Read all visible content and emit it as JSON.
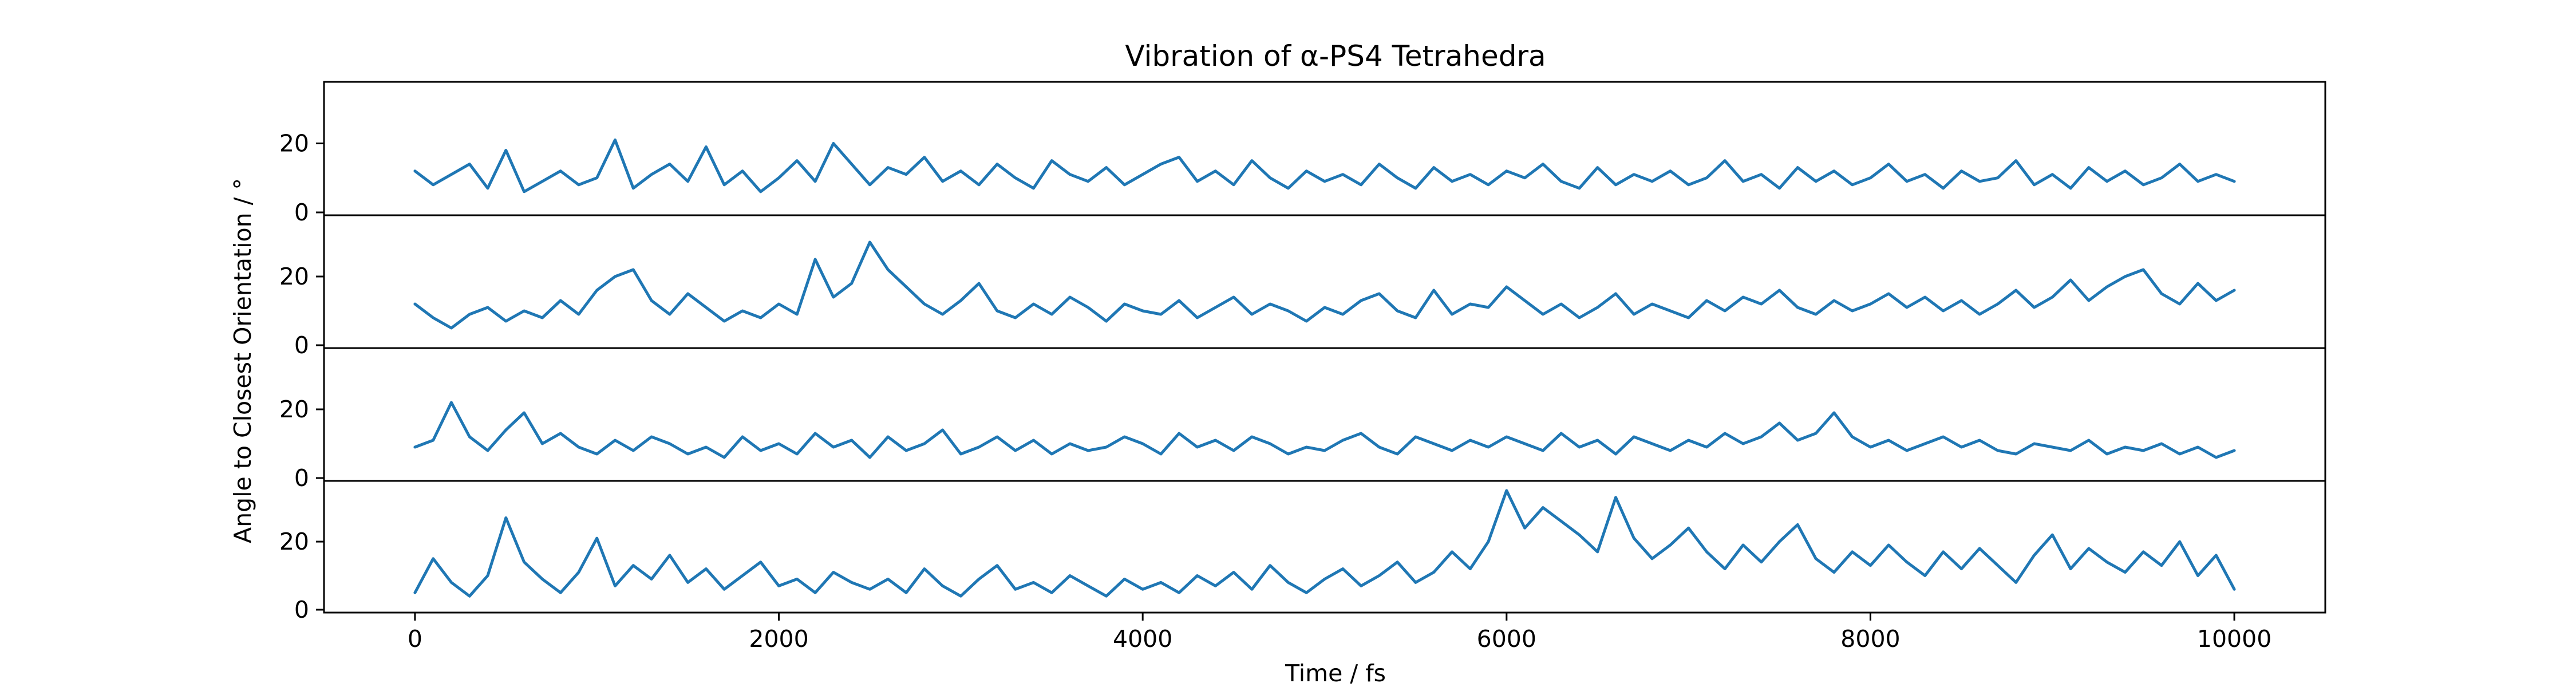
{
  "chart_data": {
    "type": "line",
    "title": "Vibration of α-PS4 Tetrahedra",
    "xlabel": "Time / fs",
    "ylabel": "Angle to Closest Orientation / °",
    "xlim": [
      -500,
      10500
    ],
    "ylim": [
      0,
      37
    ],
    "x_ticks": [
      0,
      2000,
      4000,
      6000,
      8000,
      10000
    ],
    "x_tick_labels": [
      "0",
      "2000",
      "4000",
      "6000",
      "8000",
      "10000"
    ],
    "y_ticks": [
      0,
      20
    ],
    "y_tick_labels": [
      "0",
      "20"
    ],
    "grid": false,
    "legend": "none",
    "line_color": "#1f77b4",
    "series": [
      {
        "x": [
          0,
          100,
          200,
          300,
          400,
          500,
          600,
          700,
          800,
          900,
          1000,
          1100,
          1200,
          1300,
          1400,
          1500,
          1600,
          1700,
          1800,
          1900,
          2000,
          2100,
          2200,
          2300,
          2400,
          2500,
          2600,
          2700,
          2800,
          2900,
          3000,
          3100,
          3200,
          3300,
          3400,
          3500,
          3600,
          3700,
          3800,
          3900,
          4000,
          4100,
          4200,
          4300,
          4400,
          4500,
          4600,
          4700,
          4800,
          4900,
          5000,
          5100,
          5200,
          5300,
          5400,
          5500,
          5600,
          5700,
          5800,
          5900,
          6000,
          6100,
          6200,
          6300,
          6400,
          6500,
          6600,
          6700,
          6800,
          6900,
          7000,
          7100,
          7200,
          7300,
          7400,
          7500,
          7600,
          7700,
          7800,
          7900,
          8000,
          8100,
          8200,
          8300,
          8400,
          8500,
          8600,
          8700,
          8800,
          8900,
          9000,
          9100,
          9200,
          9300,
          9400,
          9500,
          9600,
          9700,
          9800,
          9900,
          10000
        ],
        "values": [
          12,
          8,
          11,
          14,
          7,
          18,
          6,
          9,
          12,
          8,
          10,
          21,
          7,
          11,
          14,
          9,
          19,
          8,
          12,
          6,
          10,
          15,
          9,
          20,
          14,
          8,
          13,
          11,
          16,
          9,
          12,
          8,
          14,
          10,
          7,
          15,
          11,
          9,
          13,
          8,
          11,
          14,
          16,
          9,
          12,
          8,
          15,
          10,
          7,
          12,
          9,
          11,
          8,
          14,
          10,
          7,
          13,
          9,
          11,
          8,
          12,
          10,
          14,
          9,
          7,
          13,
          8,
          11,
          9,
          12,
          8,
          10,
          15,
          9,
          11,
          7,
          13,
          9,
          12,
          8,
          10,
          14,
          9,
          11,
          7,
          12,
          9,
          10,
          15,
          8,
          11,
          7,
          13,
          9,
          12,
          8,
          10,
          14,
          9,
          11,
          9
        ]
      },
      {
        "x": [
          0,
          100,
          200,
          300,
          400,
          500,
          600,
          700,
          800,
          900,
          1000,
          1100,
          1200,
          1300,
          1400,
          1500,
          1600,
          1700,
          1800,
          1900,
          2000,
          2100,
          2200,
          2300,
          2400,
          2500,
          2600,
          2700,
          2800,
          2900,
          3000,
          3100,
          3200,
          3300,
          3400,
          3500,
          3600,
          3700,
          3800,
          3900,
          4000,
          4100,
          4200,
          4300,
          4400,
          4500,
          4600,
          4700,
          4800,
          4900,
          5000,
          5100,
          5200,
          5300,
          5400,
          5500,
          5600,
          5700,
          5800,
          5900,
          6000,
          6100,
          6200,
          6300,
          6400,
          6500,
          6600,
          6700,
          6800,
          6900,
          7000,
          7100,
          7200,
          7300,
          7400,
          7500,
          7600,
          7700,
          7800,
          7900,
          8000,
          8100,
          8200,
          8300,
          8400,
          8500,
          8600,
          8700,
          8800,
          8900,
          9000,
          9100,
          9200,
          9300,
          9400,
          9500,
          9600,
          9700,
          9800,
          9900,
          10000
        ],
        "values": [
          12,
          8,
          5,
          9,
          11,
          7,
          10,
          8,
          13,
          9,
          16,
          20,
          22,
          13,
          9,
          15,
          11,
          7,
          10,
          8,
          12,
          9,
          25,
          14,
          18,
          30,
          22,
          17,
          12,
          9,
          13,
          18,
          10,
          8,
          12,
          9,
          14,
          11,
          7,
          12,
          10,
          9,
          13,
          8,
          11,
          14,
          9,
          12,
          10,
          7,
          11,
          9,
          13,
          15,
          10,
          8,
          16,
          9,
          12,
          11,
          17,
          13,
          9,
          12,
          8,
          11,
          15,
          9,
          12,
          10,
          8,
          13,
          10,
          14,
          12,
          16,
          11,
          9,
          13,
          10,
          12,
          15,
          11,
          14,
          10,
          13,
          9,
          12,
          16,
          11,
          14,
          19,
          13,
          17,
          20,
          22,
          15,
          12,
          18,
          13,
          16
        ]
      },
      {
        "x": [
          0,
          100,
          200,
          300,
          400,
          500,
          600,
          700,
          800,
          900,
          1000,
          1100,
          1200,
          1300,
          1400,
          1500,
          1600,
          1700,
          1800,
          1900,
          2000,
          2100,
          2200,
          2300,
          2400,
          2500,
          2600,
          2700,
          2800,
          2900,
          3000,
          3100,
          3200,
          3300,
          3400,
          3500,
          3600,
          3700,
          3800,
          3900,
          4000,
          4100,
          4200,
          4300,
          4400,
          4500,
          4600,
          4700,
          4800,
          4900,
          5000,
          5100,
          5200,
          5300,
          5400,
          5500,
          5600,
          5700,
          5800,
          5900,
          6000,
          6100,
          6200,
          6300,
          6400,
          6500,
          6600,
          6700,
          6800,
          6900,
          7000,
          7100,
          7200,
          7300,
          7400,
          7500,
          7600,
          7700,
          7800,
          7900,
          8000,
          8100,
          8200,
          8300,
          8400,
          8500,
          8600,
          8700,
          8800,
          8900,
          9000,
          9100,
          9200,
          9300,
          9400,
          9500,
          9600,
          9700,
          9800,
          9900,
          10000
        ],
        "values": [
          9,
          11,
          22,
          12,
          8,
          14,
          19,
          10,
          13,
          9,
          7,
          11,
          8,
          12,
          10,
          7,
          9,
          6,
          12,
          8,
          10,
          7,
          13,
          9,
          11,
          6,
          12,
          8,
          10,
          14,
          7,
          9,
          12,
          8,
          11,
          7,
          10,
          8,
          9,
          12,
          10,
          7,
          13,
          9,
          11,
          8,
          12,
          10,
          7,
          9,
          8,
          11,
          13,
          9,
          7,
          12,
          10,
          8,
          11,
          9,
          12,
          10,
          8,
          13,
          9,
          11,
          7,
          12,
          10,
          8,
          11,
          9,
          13,
          10,
          12,
          16,
          11,
          13,
          19,
          12,
          9,
          11,
          8,
          10,
          12,
          9,
          11,
          8,
          7,
          10,
          9,
          8,
          11,
          7,
          9,
          8,
          10,
          7,
          9,
          6,
          8
        ]
      },
      {
        "x": [
          0,
          100,
          200,
          300,
          400,
          500,
          600,
          700,
          800,
          900,
          1000,
          1100,
          1200,
          1300,
          1400,
          1500,
          1600,
          1700,
          1800,
          1900,
          2000,
          2100,
          2200,
          2300,
          2400,
          2500,
          2600,
          2700,
          2800,
          2900,
          3000,
          3100,
          3200,
          3300,
          3400,
          3500,
          3600,
          3700,
          3800,
          3900,
          4000,
          4100,
          4200,
          4300,
          4400,
          4500,
          4600,
          4700,
          4800,
          4900,
          5000,
          5100,
          5200,
          5300,
          5400,
          5500,
          5600,
          5700,
          5800,
          5900,
          6000,
          6100,
          6200,
          6300,
          6400,
          6500,
          6600,
          6700,
          6800,
          6900,
          7000,
          7100,
          7200,
          7300,
          7400,
          7500,
          7600,
          7700,
          7800,
          7900,
          8000,
          8100,
          8200,
          8300,
          8400,
          8500,
          8600,
          8700,
          8800,
          8900,
          9000,
          9100,
          9200,
          9300,
          9400,
          9500,
          9600,
          9700,
          9800,
          9900,
          10000
        ],
        "values": [
          5,
          15,
          8,
          4,
          10,
          27,
          14,
          9,
          5,
          11,
          21,
          7,
          13,
          9,
          16,
          8,
          12,
          6,
          10,
          14,
          7,
          9,
          5,
          11,
          8,
          6,
          9,
          5,
          12,
          7,
          4,
          9,
          13,
          6,
          8,
          5,
          10,
          7,
          4,
          9,
          6,
          8,
          5,
          10,
          7,
          11,
          6,
          13,
          8,
          5,
          9,
          12,
          7,
          10,
          14,
          8,
          11,
          17,
          12,
          20,
          35,
          24,
          30,
          26,
          22,
          17,
          33,
          21,
          15,
          19,
          24,
          17,
          12,
          19,
          14,
          20,
          25,
          15,
          11,
          17,
          13,
          19,
          14,
          10,
          17,
          12,
          18,
          13,
          8,
          16,
          22,
          12,
          18,
          14,
          11,
          17,
          13,
          20,
          10,
          16,
          6
        ]
      }
    ]
  }
}
